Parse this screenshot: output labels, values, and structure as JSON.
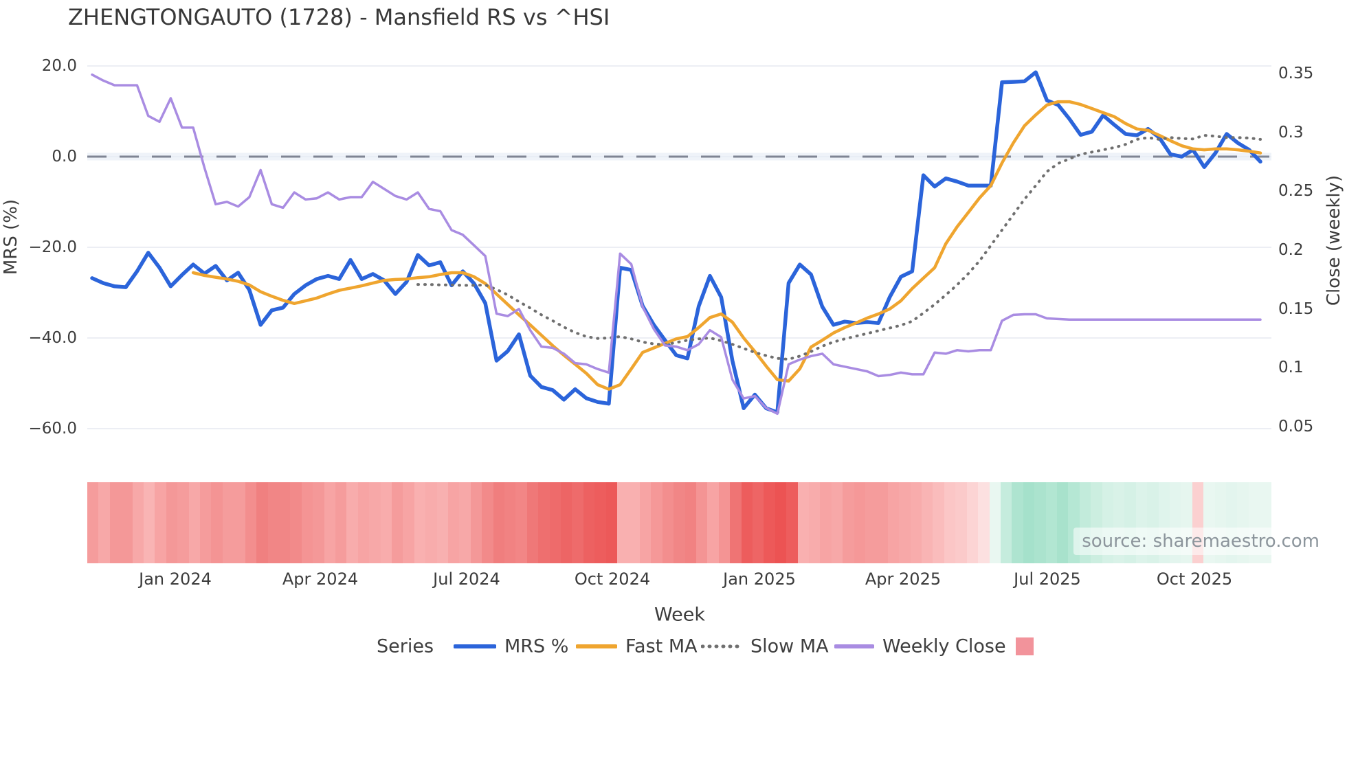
{
  "title": "ZHENGTONGAUTO (1728) - Mansfield RS vs ^HSI",
  "source_text": "source: sharemaestro.com",
  "legend": {
    "title": "Series",
    "items": [
      {
        "label": "MRS %",
        "color": "#2b64da",
        "style": "solid"
      },
      {
        "label": "Fast MA",
        "color": "#efa52f",
        "style": "solid"
      },
      {
        "label": "Slow MA",
        "color": "#6f6f6f",
        "style": "dotted"
      },
      {
        "label": "Weekly Close",
        "color": "#a98ce2",
        "style": "solid"
      },
      {
        "label": "",
        "color": "#f2939b",
        "style": "square"
      }
    ]
  },
  "chart_data": {
    "type": "line",
    "title": "ZHENGTONGAUTO (1728) - Mansfield RS vs ^HSI",
    "x_axis": {
      "label": "Week",
      "ticks": [
        "Jan 2024",
        "Apr 2024",
        "Jul 2024",
        "Oct 2024",
        "Jan 2025",
        "Apr 2025",
        "Jul 2025",
        "Oct 2025"
      ],
      "points": 105,
      "freq": "weekly"
    },
    "left_axis": {
      "label": "MRS (%)",
      "tick_labels": [
        "20.0",
        "0.0",
        "−20.0",
        "−40.0",
        "−60.0"
      ],
      "tick_values": [
        20,
        0,
        -20,
        -40,
        -60
      ],
      "zero_line": true
    },
    "right_axis": {
      "label": "Close (weekly)",
      "tick_labels": [
        "0.35",
        "0.3",
        "0.25",
        "0.2",
        "0.15",
        "0.1",
        "0.05"
      ],
      "tick_values": [
        0.35,
        0.3,
        0.25,
        0.2,
        0.15,
        0.1,
        0.05
      ]
    },
    "series": [
      {
        "name": "MRS %",
        "axis": "left",
        "color": "#2b64da",
        "style": "solid",
        "width": 5.5,
        "values": [
          -26.8,
          -27.9,
          -28.6,
          -28.8,
          -25.3,
          -21.2,
          -24.5,
          -28.6,
          -26.1,
          -23.8,
          -25.8,
          -24.1,
          -27.3,
          -25.6,
          -29.4,
          -37.1,
          -33.9,
          -33.3,
          -30.3,
          -28.4,
          -27.0,
          -26.3,
          -27.0,
          -22.8,
          -27.0,
          -25.9,
          -27.3,
          -30.3,
          -27.6,
          -21.7,
          -24.0,
          -23.3,
          -28.4,
          -25.3,
          -28.0,
          -32.3,
          -45.0,
          -42.9,
          -39.2,
          -48.3,
          -50.8,
          -51.5,
          -53.6,
          -51.3,
          -53.3,
          -54.1,
          -54.5,
          -24.5,
          -25.0,
          -32.9,
          -37.1,
          -40.5,
          -43.8,
          -44.5,
          -33.0,
          -26.3,
          -31.0,
          -45.0,
          -55.5,
          -52.5,
          -55.5,
          -56.4,
          -27.9,
          -23.8,
          -26.0,
          -33.1,
          -37.1,
          -36.4,
          -36.7,
          -36.5,
          -36.7,
          -31.0,
          -26.5,
          -25.3,
          -4.1,
          -6.6,
          -4.8,
          -5.5,
          -6.4,
          -6.4,
          -6.4,
          16.4,
          16.5,
          16.6,
          18.6,
          12.4,
          11.4,
          8.3,
          4.8,
          5.5,
          9.1,
          7.0,
          5.0,
          4.7,
          6.1,
          4.2,
          0.5,
          0.0,
          1.5,
          -2.3,
          0.8,
          5.0,
          3.0,
          1.5,
          -1.1
        ]
      },
      {
        "name": "Fast MA",
        "axis": "left",
        "color": "#efa52f",
        "style": "solid",
        "width": 4.5,
        "values": [
          null,
          null,
          null,
          null,
          null,
          null,
          null,
          null,
          null,
          -25.6,
          -26.2,
          -26.6,
          -27.0,
          -27.5,
          -28.3,
          -29.8,
          -30.8,
          -31.7,
          -32.4,
          -31.8,
          -31.2,
          -30.3,
          -29.5,
          -29.0,
          -28.5,
          -27.9,
          -27.3,
          -27.1,
          -27.0,
          -26.7,
          -26.5,
          -26.0,
          -25.6,
          -25.6,
          -26.5,
          -28.0,
          -30.3,
          -32.6,
          -34.9,
          -37.1,
          -39.4,
          -41.7,
          -43.8,
          -45.8,
          -47.8,
          -50.3,
          -51.3,
          -50.3,
          -46.8,
          -43.2,
          -42.2,
          -41.2,
          -40.2,
          -39.7,
          -37.7,
          -35.5,
          -34.7,
          -36.5,
          -40.0,
          -43.0,
          -46.2,
          -49.2,
          -49.5,
          -46.8,
          -42.0,
          -40.5,
          -38.9,
          -37.7,
          -36.7,
          -35.6,
          -34.7,
          -33.6,
          -31.8,
          -29.1,
          -26.8,
          -24.5,
          -19.2,
          -15.5,
          -12.3,
          -9.1,
          -6.4,
          -1.4,
          3.0,
          6.8,
          9.2,
          11.4,
          12.1,
          12.1,
          11.5,
          10.6,
          9.7,
          8.8,
          7.3,
          6.1,
          5.8,
          4.7,
          3.5,
          2.4,
          1.7,
          1.5,
          1.7,
          1.7,
          1.5,
          1.2,
          0.8
        ]
      },
      {
        "name": "Slow MA",
        "axis": "left",
        "color": "#6f6f6f",
        "style": "dotted",
        "width": 4,
        "values": [
          null,
          null,
          null,
          null,
          null,
          null,
          null,
          null,
          null,
          null,
          null,
          null,
          null,
          null,
          null,
          null,
          null,
          null,
          null,
          null,
          null,
          null,
          null,
          null,
          null,
          null,
          null,
          null,
          null,
          -28.2,
          -28.2,
          -28.3,
          -28.3,
          -28.4,
          -28.4,
          -28.3,
          -29.3,
          -30.5,
          -32.0,
          -33.4,
          -34.9,
          -36.2,
          -37.6,
          -38.8,
          -39.7,
          -40.1,
          -40.0,
          -39.7,
          -40.2,
          -40.9,
          -41.3,
          -41.5,
          -41.0,
          -40.5,
          -40.2,
          -40.0,
          -40.6,
          -41.4,
          -42.3,
          -43.2,
          -43.9,
          -44.5,
          -44.7,
          -44.0,
          -43.0,
          -41.8,
          -40.9,
          -40.2,
          -39.6,
          -39.0,
          -38.4,
          -37.8,
          -37.2,
          -36.3,
          -34.5,
          -32.6,
          -30.5,
          -28.3,
          -25.8,
          -23.0,
          -19.6,
          -16.2,
          -12.8,
          -9.4,
          -6.4,
          -3.3,
          -1.5,
          -0.5,
          0.5,
          1.0,
          1.5,
          2.0,
          2.7,
          3.8,
          4.2,
          3.8,
          4.2,
          4.0,
          3.9,
          4.7,
          4.5,
          4.2,
          4.2,
          4.1,
          3.8
        ]
      },
      {
        "name": "Weekly Close",
        "axis": "right",
        "color": "#a98ce2",
        "style": "solid",
        "width": 3.5,
        "values": [
          0.349,
          0.344,
          0.34,
          0.34,
          0.34,
          0.314,
          0.309,
          0.329,
          0.304,
          0.304,
          0.27,
          0.239,
          0.241,
          0.237,
          0.245,
          0.268,
          0.239,
          0.236,
          0.249,
          0.243,
          0.244,
          0.249,
          0.243,
          0.245,
          0.245,
          0.258,
          0.252,
          0.246,
          0.243,
          0.249,
          0.235,
          0.233,
          0.217,
          0.213,
          0.204,
          0.195,
          0.146,
          0.144,
          0.15,
          0.132,
          0.118,
          0.117,
          0.112,
          0.104,
          0.103,
          0.099,
          0.096,
          0.197,
          0.188,
          0.152,
          0.133,
          0.119,
          0.118,
          0.115,
          0.12,
          0.132,
          0.126,
          0.09,
          0.074,
          0.076,
          0.066,
          0.061,
          0.103,
          0.107,
          0.11,
          0.112,
          0.103,
          0.101,
          0.099,
          0.097,
          0.093,
          0.094,
          0.096,
          0.0945,
          0.0945,
          0.113,
          0.112,
          0.115,
          0.114,
          0.115,
          0.115,
          0.14,
          0.145,
          0.1455,
          0.1455,
          0.142,
          0.1415,
          0.141,
          0.141,
          0.141,
          0.141,
          0.141,
          0.141,
          0.141,
          0.141,
          0.141,
          0.141,
          0.141,
          0.141,
          0.141,
          0.141,
          0.141,
          0.141,
          0.141,
          0.141
        ]
      }
    ],
    "heatmap": {
      "description": "weekly sentiment strip under chart",
      "colors": [
        "#f59c9c",
        "#f7a8a8",
        "#f49898",
        "#f49898",
        "#f7a8a8",
        "#f9b4b4",
        "#f7a4a4",
        "#f49898",
        "#f59c9c",
        "#f7a8a8",
        "#f59c9c",
        "#f49494",
        "#f59c9c",
        "#f59c9c",
        "#f38e8e",
        "#f08080",
        "#f18686",
        "#f18686",
        "#f28a8a",
        "#f49494",
        "#f49898",
        "#f7a4a4",
        "#f59c9c",
        "#f8acac",
        "#f7a4a4",
        "#f7a8a8",
        "#f8acac",
        "#f59c9c",
        "#f7a4a4",
        "#f9b0b0",
        "#f8acac",
        "#f8b0b0",
        "#f7a4a4",
        "#f7a8a8",
        "#f49898",
        "#f28a8a",
        "#f07e7e",
        "#f18282",
        "#f28686",
        "#ef7878",
        "#ee6f6f",
        "#ee6b6b",
        "#ed6565",
        "#ee6b6b",
        "#ed6161",
        "#ed5d5d",
        "#ec5959",
        "#f9b0b0",
        "#f9b0b0",
        "#f7a4a4",
        "#f59898",
        "#f38e8e",
        "#f18686",
        "#f18282",
        "#f49494",
        "#f7a4a4",
        "#f49494",
        "#ef7474",
        "#ed5d5d",
        "#ee6565",
        "#ed5959",
        "#ec5353",
        "#ed5d5d",
        "#f9b0b0",
        "#f8acac",
        "#f7a4a4",
        "#f7a8a8",
        "#f59c9c",
        "#f59898",
        "#f59c9c",
        "#f59c9c",
        "#f7a4a4",
        "#f7a8a8",
        "#f8acac",
        "#f9b4b4",
        "#fabcbc",
        "#fbc6c6",
        "#fbcaca",
        "#fcd4d4",
        "#fce0e0",
        "#e9f7f1",
        "#c5ecdd",
        "#aee4d0",
        "#a5e1cb",
        "#abe3ce",
        "#b2e6d2",
        "#a8e2cc",
        "#b5e7d4",
        "#c2ebdb",
        "#cceee0",
        "#d5f1e6",
        "#d9f2e8",
        "#d5f1e6",
        "#dcf3ea",
        "#d9f2e8",
        "#dff4ec",
        "#e3f5ee",
        "#e6f6ef",
        "#fbd0d0",
        "#e9f7f1",
        "#e6f6ef",
        "#e3f5ee",
        "#e6f6ef",
        "#e9f7f1",
        "#e9f7f1"
      ]
    }
  }
}
